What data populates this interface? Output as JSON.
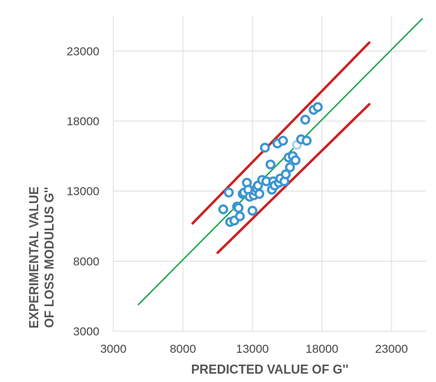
{
  "chart_data": {
    "type": "scatter",
    "title": "",
    "xlabel": "PREDICTED VALUE OF G''",
    "ylabel_lines": [
      "EXPERIMENTAL VALUE",
      "OF LOSS MODULUS G''"
    ],
    "xlim": [
      3000,
      25500
    ],
    "ylim": [
      3000,
      25500
    ],
    "xticks": [
      3000,
      8000,
      13000,
      18000,
      23000
    ],
    "yticks": [
      3000,
      8000,
      13000,
      18000,
      23000
    ],
    "grid": true,
    "lines": [
      {
        "name": "identity",
        "color": "#1aa64a",
        "x": [
          4800,
          25200
        ],
        "y": [
          4900,
          25300
        ]
      },
      {
        "name": "upper-bound",
        "color": "#cc1f1f",
        "x": [
          8700,
          21400
        ],
        "y": [
          10700,
          23600
        ]
      },
      {
        "name": "lower-bound",
        "color": "#cc1f1f",
        "x": [
          10500,
          21400
        ],
        "y": [
          8600,
          19200
        ]
      }
    ],
    "points": {
      "color": "#3a95d0",
      "highlight_color": "#a8d4f0",
      "x": [
        10900,
        11300,
        11400,
        11700,
        11900,
        12000,
        12100,
        12300,
        12400,
        12600,
        12700,
        12800,
        13000,
        13100,
        13200,
        13300,
        13400,
        13500,
        13700,
        13900,
        14000,
        14300,
        14400,
        14500,
        14600,
        14800,
        14900,
        15000,
        15200,
        15300,
        15400,
        15600,
        15700,
        15900,
        16100,
        16200,
        16500,
        16800,
        16900,
        17400,
        17700
      ],
      "y": [
        11700,
        12900,
        10800,
        10900,
        11900,
        11800,
        11200,
        12800,
        12900,
        13600,
        13100,
        12600,
        11600,
        12700,
        13000,
        13200,
        13400,
        12800,
        13800,
        16100,
        13700,
        14900,
        13100,
        13700,
        13400,
        16400,
        13600,
        13900,
        16600,
        13700,
        14200,
        15400,
        14700,
        15500,
        15200,
        16300,
        16700,
        18100,
        16600,
        18800,
        19000
      ],
      "highlight_indices": [
        35
      ]
    }
  }
}
